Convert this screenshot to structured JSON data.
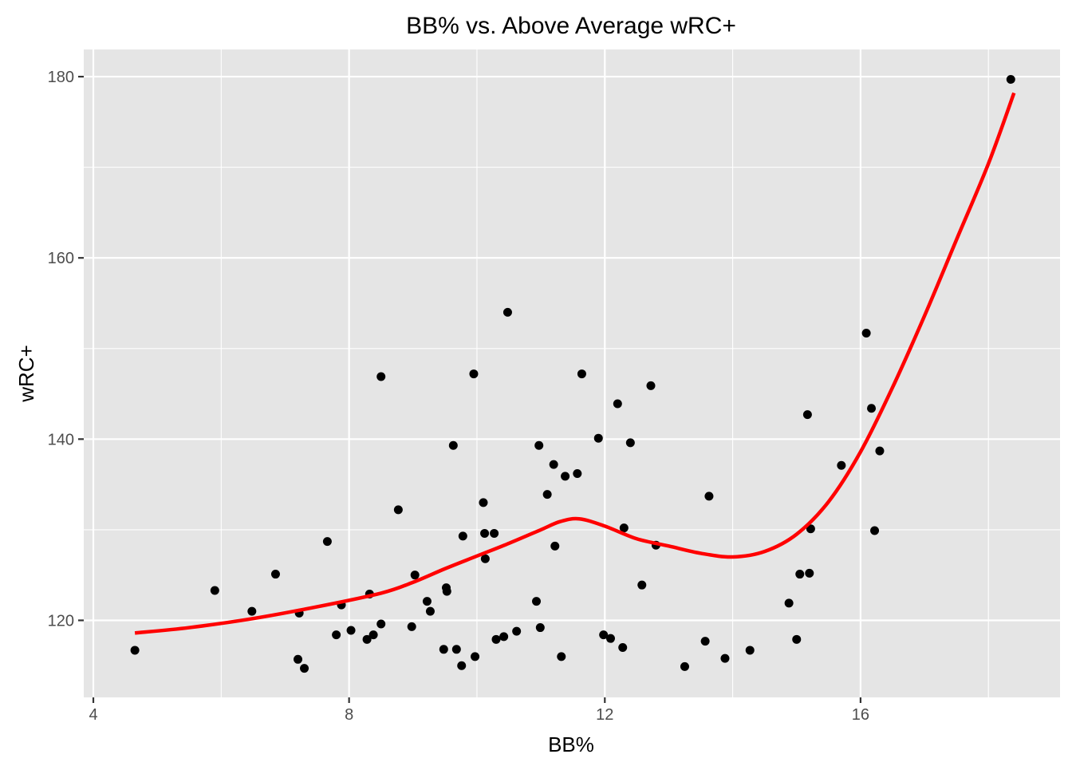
{
  "chart_data": {
    "type": "scatter",
    "title": "BB% vs. Above Average wRC+",
    "xlabel": "BB%",
    "ylabel": "wRC+",
    "xlim": [
      3.85,
      19.12
    ],
    "ylim": [
      111.5,
      183
    ],
    "xticks": [
      4,
      8,
      12,
      16
    ],
    "yticks": [
      120,
      140,
      160,
      180
    ],
    "grid": true,
    "legend": "none",
    "colors": {
      "panel": "#e5e5e5",
      "grid": "#ffffff",
      "points": "#000000",
      "trend": "#ff0000"
    },
    "points": [
      [
        4.65,
        116.7
      ],
      [
        5.9,
        123.3
      ],
      [
        6.48,
        121.0
      ],
      [
        6.85,
        125.1
      ],
      [
        7.2,
        115.7
      ],
      [
        7.22,
        120.8
      ],
      [
        7.3,
        114.7
      ],
      [
        7.66,
        128.7
      ],
      [
        7.8,
        118.4
      ],
      [
        7.88,
        121.7
      ],
      [
        8.03,
        118.9
      ],
      [
        8.28,
        117.9
      ],
      [
        8.32,
        122.9
      ],
      [
        8.38,
        118.4
      ],
      [
        8.5,
        146.9
      ],
      [
        8.5,
        119.6
      ],
      [
        8.77,
        132.2
      ],
      [
        8.98,
        119.3
      ],
      [
        9.03,
        125.0
      ],
      [
        9.22,
        122.1
      ],
      [
        9.27,
        121.0
      ],
      [
        9.48,
        116.8
      ],
      [
        9.52,
        123.6
      ],
      [
        9.53,
        123.2
      ],
      [
        9.63,
        139.3
      ],
      [
        9.68,
        116.8
      ],
      [
        9.76,
        115.0
      ],
      [
        9.78,
        129.3
      ],
      [
        9.95,
        147.2
      ],
      [
        9.97,
        116.0
      ],
      [
        10.1,
        133.0
      ],
      [
        10.12,
        129.6
      ],
      [
        10.13,
        126.8
      ],
      [
        10.27,
        129.6
      ],
      [
        10.3,
        117.9
      ],
      [
        10.42,
        118.2
      ],
      [
        10.48,
        154.0
      ],
      [
        10.62,
        118.8
      ],
      [
        10.93,
        122.1
      ],
      [
        10.97,
        139.3
      ],
      [
        10.99,
        119.2
      ],
      [
        11.1,
        133.9
      ],
      [
        11.2,
        137.2
      ],
      [
        11.22,
        128.2
      ],
      [
        11.32,
        116.0
      ],
      [
        11.38,
        135.9
      ],
      [
        11.57,
        136.2
      ],
      [
        11.64,
        147.2
      ],
      [
        11.9,
        140.1
      ],
      [
        11.98,
        118.4
      ],
      [
        12.09,
        118.0
      ],
      [
        12.2,
        143.9
      ],
      [
        12.28,
        117.0
      ],
      [
        12.3,
        130.2
      ],
      [
        12.4,
        139.6
      ],
      [
        12.58,
        123.9
      ],
      [
        12.72,
        145.9
      ],
      [
        12.8,
        128.3
      ],
      [
        13.25,
        114.9
      ],
      [
        13.57,
        117.7
      ],
      [
        13.63,
        133.7
      ],
      [
        13.88,
        115.8
      ],
      [
        14.27,
        116.7
      ],
      [
        14.88,
        121.9
      ],
      [
        15.0,
        117.9
      ],
      [
        15.05,
        125.1
      ],
      [
        15.17,
        142.7
      ],
      [
        15.2,
        125.2
      ],
      [
        15.22,
        130.1
      ],
      [
        15.7,
        137.1
      ],
      [
        16.09,
        151.7
      ],
      [
        16.17,
        143.4
      ],
      [
        16.22,
        129.9
      ],
      [
        16.3,
        138.7
      ],
      [
        18.35,
        179.7
      ]
    ],
    "trend_line": [
      [
        4.65,
        118.6
      ],
      [
        5.5,
        119.2
      ],
      [
        6.5,
        120.2
      ],
      [
        7.5,
        121.5
      ],
      [
        8.5,
        123.0
      ],
      [
        9.0,
        124.2
      ],
      [
        9.5,
        125.7
      ],
      [
        10.0,
        127.1
      ],
      [
        10.5,
        128.5
      ],
      [
        11.0,
        130.0
      ],
      [
        11.3,
        130.9
      ],
      [
        11.6,
        131.2
      ],
      [
        12.0,
        130.4
      ],
      [
        12.5,
        129.0
      ],
      [
        13.0,
        128.2
      ],
      [
        13.5,
        127.4
      ],
      [
        14.0,
        127.0
      ],
      [
        14.5,
        127.6
      ],
      [
        15.0,
        129.5
      ],
      [
        15.5,
        133.1
      ],
      [
        16.0,
        138.6
      ],
      [
        16.5,
        145.7
      ],
      [
        17.0,
        153.6
      ],
      [
        17.5,
        162.0
      ],
      [
        18.0,
        170.4
      ],
      [
        18.4,
        178.2
      ]
    ]
  }
}
